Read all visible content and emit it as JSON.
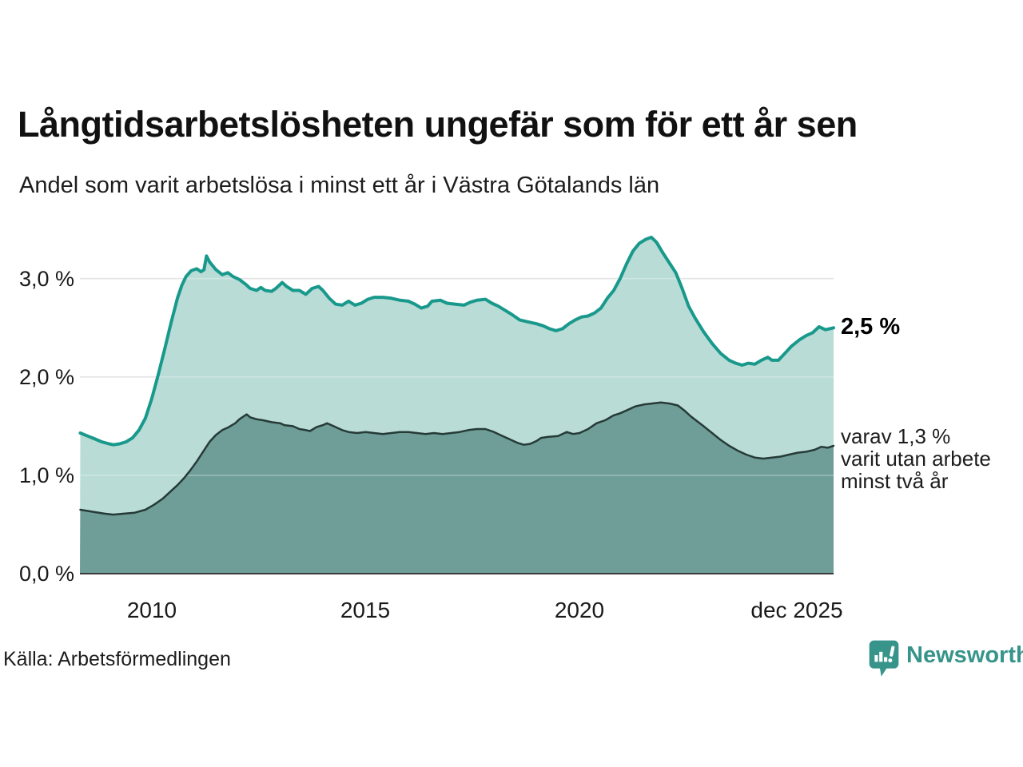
{
  "header": {
    "title": "Långtidsarbetslösheten ungefär som för ett år sen",
    "subtitle": "Andel som varit arbetslösa i minst ett år i Västra Götalands län"
  },
  "chart_data": {
    "type": "area",
    "title": "Långtidsarbetslösheten ungefär som för ett år sen",
    "subtitle": "Andel som varit arbetslösa i minst ett år i Västra Götalands län",
    "unit": "%",
    "grid": true,
    "x_axis": {
      "range": [
        2008.32,
        2025.94
      ],
      "ticks": [
        {
          "label": "2010",
          "year": 2010
        },
        {
          "label": "2015",
          "year": 2015
        },
        {
          "label": "2020",
          "year": 2020
        },
        {
          "label": "dec 2025",
          "year": 2025.94
        }
      ]
    },
    "y_axis": {
      "range": [
        0,
        3.5
      ],
      "ticks": [
        {
          "label": "3,0 %",
          "value": 3.0
        },
        {
          "label": "2,0 %",
          "value": 2.0
        },
        {
          "label": "1,0 %",
          "value": 1.0
        },
        {
          "label": "0,0 %",
          "value": 0.0
        }
      ]
    },
    "colors": {
      "line_primary": "#18998c",
      "fill_primary": "#b9dcd6",
      "line_secondary": "#263a37",
      "fill_secondary": "#6f9e99",
      "gridline": "#d9d9d9",
      "baseline": "#3b3b3b"
    },
    "series": [
      {
        "name": "varit arbetslösa minst ett år",
        "end_value": "2,5 %",
        "points": [
          [
            2008.33,
            1.43
          ],
          [
            2008.5,
            1.4
          ],
          [
            2008.67,
            1.37
          ],
          [
            2008.83,
            1.34
          ],
          [
            2009.0,
            1.32
          ],
          [
            2009.1,
            1.31
          ],
          [
            2009.25,
            1.32
          ],
          [
            2009.4,
            1.34
          ],
          [
            2009.55,
            1.38
          ],
          [
            2009.7,
            1.46
          ],
          [
            2009.85,
            1.58
          ],
          [
            2010.0,
            1.78
          ],
          [
            2010.15,
            2.02
          ],
          [
            2010.3,
            2.28
          ],
          [
            2010.45,
            2.55
          ],
          [
            2010.6,
            2.8
          ],
          [
            2010.7,
            2.93
          ],
          [
            2010.8,
            3.02
          ],
          [
            2010.92,
            3.08
          ],
          [
            2011.05,
            3.1
          ],
          [
            2011.15,
            3.07
          ],
          [
            2011.22,
            3.09
          ],
          [
            2011.28,
            3.23
          ],
          [
            2011.35,
            3.17
          ],
          [
            2011.5,
            3.09
          ],
          [
            2011.65,
            3.04
          ],
          [
            2011.78,
            3.06
          ],
          [
            2011.9,
            3.02
          ],
          [
            2012.05,
            2.99
          ],
          [
            2012.2,
            2.94
          ],
          [
            2012.3,
            2.9
          ],
          [
            2012.45,
            2.88
          ],
          [
            2012.55,
            2.91
          ],
          [
            2012.65,
            2.88
          ],
          [
            2012.8,
            2.87
          ],
          [
            2012.9,
            2.9
          ],
          [
            2013.05,
            2.96
          ],
          [
            2013.15,
            2.92
          ],
          [
            2013.3,
            2.88
          ],
          [
            2013.45,
            2.88
          ],
          [
            2013.6,
            2.84
          ],
          [
            2013.75,
            2.9
          ],
          [
            2013.9,
            2.92
          ],
          [
            2014.0,
            2.88
          ],
          [
            2014.15,
            2.8
          ],
          [
            2014.3,
            2.74
          ],
          [
            2014.45,
            2.73
          ],
          [
            2014.6,
            2.77
          ],
          [
            2014.75,
            2.73
          ],
          [
            2014.9,
            2.75
          ],
          [
            2015.05,
            2.79
          ],
          [
            2015.2,
            2.81
          ],
          [
            2015.4,
            2.81
          ],
          [
            2015.6,
            2.8
          ],
          [
            2015.8,
            2.78
          ],
          [
            2016.0,
            2.77
          ],
          [
            2016.15,
            2.74
          ],
          [
            2016.3,
            2.7
          ],
          [
            2016.45,
            2.72
          ],
          [
            2016.55,
            2.77
          ],
          [
            2016.75,
            2.78
          ],
          [
            2016.9,
            2.75
          ],
          [
            2017.1,
            2.74
          ],
          [
            2017.3,
            2.73
          ],
          [
            2017.45,
            2.76
          ],
          [
            2017.6,
            2.78
          ],
          [
            2017.8,
            2.79
          ],
          [
            2017.95,
            2.75
          ],
          [
            2018.1,
            2.72
          ],
          [
            2018.25,
            2.68
          ],
          [
            2018.4,
            2.64
          ],
          [
            2018.6,
            2.58
          ],
          [
            2018.8,
            2.56
          ],
          [
            2019.0,
            2.54
          ],
          [
            2019.15,
            2.52
          ],
          [
            2019.3,
            2.49
          ],
          [
            2019.45,
            2.47
          ],
          [
            2019.6,
            2.49
          ],
          [
            2019.75,
            2.54
          ],
          [
            2019.9,
            2.58
          ],
          [
            2020.05,
            2.61
          ],
          [
            2020.2,
            2.62
          ],
          [
            2020.35,
            2.65
          ],
          [
            2020.5,
            2.7
          ],
          [
            2020.65,
            2.8
          ],
          [
            2020.8,
            2.88
          ],
          [
            2020.95,
            3.0
          ],
          [
            2021.1,
            3.15
          ],
          [
            2021.25,
            3.28
          ],
          [
            2021.4,
            3.36
          ],
          [
            2021.55,
            3.4
          ],
          [
            2021.68,
            3.42
          ],
          [
            2021.8,
            3.37
          ],
          [
            2021.95,
            3.26
          ],
          [
            2022.1,
            3.16
          ],
          [
            2022.25,
            3.06
          ],
          [
            2022.4,
            2.9
          ],
          [
            2022.55,
            2.72
          ],
          [
            2022.7,
            2.6
          ],
          [
            2022.9,
            2.46
          ],
          [
            2023.1,
            2.34
          ],
          [
            2023.3,
            2.24
          ],
          [
            2023.5,
            2.17
          ],
          [
            2023.65,
            2.14
          ],
          [
            2023.8,
            2.12
          ],
          [
            2023.95,
            2.14
          ],
          [
            2024.1,
            2.13
          ],
          [
            2024.25,
            2.17
          ],
          [
            2024.4,
            2.2
          ],
          [
            2024.5,
            2.17
          ],
          [
            2024.65,
            2.17
          ],
          [
            2024.8,
            2.24
          ],
          [
            2024.95,
            2.31
          ],
          [
            2025.15,
            2.38
          ],
          [
            2025.3,
            2.42
          ],
          [
            2025.45,
            2.45
          ],
          [
            2025.6,
            2.51
          ],
          [
            2025.75,
            2.48
          ],
          [
            2025.94,
            2.5
          ]
        ]
      },
      {
        "name": "varav varit utan arbete minst två år",
        "end_value": "1,3 %",
        "points": [
          [
            2008.33,
            0.65
          ],
          [
            2008.6,
            0.63
          ],
          [
            2008.9,
            0.61
          ],
          [
            2009.1,
            0.6
          ],
          [
            2009.35,
            0.61
          ],
          [
            2009.6,
            0.62
          ],
          [
            2009.85,
            0.65
          ],
          [
            2010.05,
            0.7
          ],
          [
            2010.25,
            0.76
          ],
          [
            2010.45,
            0.84
          ],
          [
            2010.6,
            0.9
          ],
          [
            2010.75,
            0.97
          ],
          [
            2010.9,
            1.05
          ],
          [
            2011.05,
            1.14
          ],
          [
            2011.2,
            1.24
          ],
          [
            2011.35,
            1.34
          ],
          [
            2011.5,
            1.41
          ],
          [
            2011.65,
            1.46
          ],
          [
            2011.8,
            1.49
          ],
          [
            2011.95,
            1.53
          ],
          [
            2012.05,
            1.57
          ],
          [
            2012.15,
            1.6
          ],
          [
            2012.22,
            1.62
          ],
          [
            2012.3,
            1.59
          ],
          [
            2012.45,
            1.57
          ],
          [
            2012.6,
            1.56
          ],
          [
            2012.8,
            1.54
          ],
          [
            2013.0,
            1.53
          ],
          [
            2013.1,
            1.51
          ],
          [
            2013.3,
            1.5
          ],
          [
            2013.45,
            1.47
          ],
          [
            2013.6,
            1.46
          ],
          [
            2013.7,
            1.45
          ],
          [
            2013.85,
            1.49
          ],
          [
            2014.0,
            1.51
          ],
          [
            2014.1,
            1.53
          ],
          [
            2014.25,
            1.5
          ],
          [
            2014.45,
            1.46
          ],
          [
            2014.6,
            1.44
          ],
          [
            2014.8,
            1.43
          ],
          [
            2015.0,
            1.44
          ],
          [
            2015.2,
            1.43
          ],
          [
            2015.4,
            1.42
          ],
          [
            2015.6,
            1.43
          ],
          [
            2015.8,
            1.44
          ],
          [
            2016.0,
            1.44
          ],
          [
            2016.2,
            1.43
          ],
          [
            2016.4,
            1.42
          ],
          [
            2016.6,
            1.43
          ],
          [
            2016.8,
            1.42
          ],
          [
            2017.0,
            1.43
          ],
          [
            2017.2,
            1.44
          ],
          [
            2017.4,
            1.46
          ],
          [
            2017.6,
            1.47
          ],
          [
            2017.8,
            1.47
          ],
          [
            2018.0,
            1.44
          ],
          [
            2018.2,
            1.4
          ],
          [
            2018.4,
            1.36
          ],
          [
            2018.55,
            1.33
          ],
          [
            2018.7,
            1.31
          ],
          [
            2018.85,
            1.32
          ],
          [
            2019.0,
            1.35
          ],
          [
            2019.1,
            1.38
          ],
          [
            2019.25,
            1.39
          ],
          [
            2019.5,
            1.4
          ],
          [
            2019.7,
            1.44
          ],
          [
            2019.85,
            1.42
          ],
          [
            2020.0,
            1.43
          ],
          [
            2020.2,
            1.47
          ],
          [
            2020.4,
            1.53
          ],
          [
            2020.6,
            1.56
          ],
          [
            2020.8,
            1.61
          ],
          [
            2020.95,
            1.63
          ],
          [
            2021.1,
            1.66
          ],
          [
            2021.3,
            1.7
          ],
          [
            2021.5,
            1.72
          ],
          [
            2021.7,
            1.73
          ],
          [
            2021.9,
            1.74
          ],
          [
            2022.1,
            1.73
          ],
          [
            2022.3,
            1.71
          ],
          [
            2022.45,
            1.66
          ],
          [
            2022.6,
            1.6
          ],
          [
            2022.75,
            1.55
          ],
          [
            2022.9,
            1.5
          ],
          [
            2023.1,
            1.43
          ],
          [
            2023.3,
            1.36
          ],
          [
            2023.5,
            1.3
          ],
          [
            2023.7,
            1.25
          ],
          [
            2023.9,
            1.21
          ],
          [
            2024.1,
            1.18
          ],
          [
            2024.3,
            1.17
          ],
          [
            2024.5,
            1.18
          ],
          [
            2024.7,
            1.19
          ],
          [
            2024.9,
            1.21
          ],
          [
            2025.1,
            1.23
          ],
          [
            2025.3,
            1.24
          ],
          [
            2025.5,
            1.26
          ],
          [
            2025.65,
            1.29
          ],
          [
            2025.8,
            1.28
          ],
          [
            2025.94,
            1.3
          ]
        ]
      }
    ],
    "annotations": {
      "end_value_top": "2,5 %",
      "varav_lines": [
        "varav 1,3 %",
        "varit utan arbete",
        "minst två år"
      ]
    },
    "legend_position": "none"
  },
  "footer": {
    "source": "Källa: Arbetsförmedlingen",
    "brand": "Newsworthy"
  }
}
